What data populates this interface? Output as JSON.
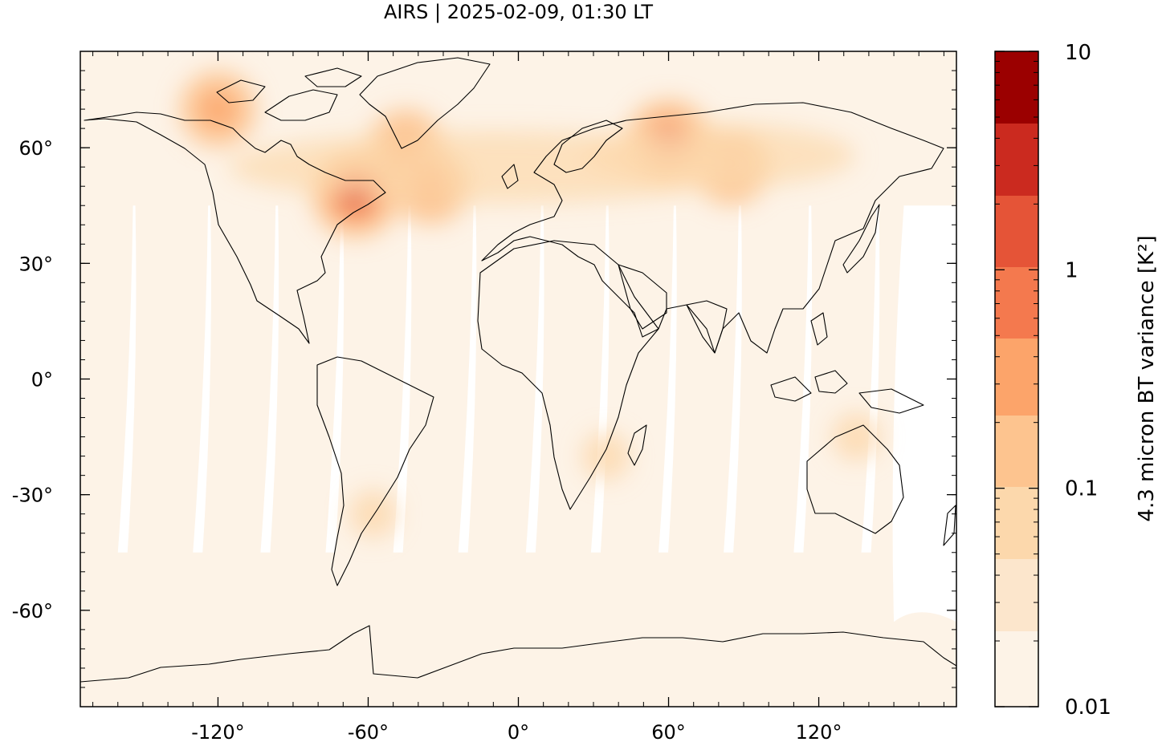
{
  "title": "AIRS | 2025-02-09, 01:30 LT",
  "map": {
    "projection": "equirectangular",
    "lon_range": [
      -175,
      175
    ],
    "lat_range": [
      -85,
      85
    ],
    "background_color": "#fdf3e7",
    "coastline_color": "#000000",
    "swath_gap_color": "#ffffff",
    "x_ticks": [
      {
        "value": -120,
        "label": "-120°"
      },
      {
        "value": -60,
        "label": "-60°"
      },
      {
        "value": 0,
        "label": "0°"
      },
      {
        "value": 60,
        "label": "60°"
      },
      {
        "value": 120,
        "label": "120°"
      }
    ],
    "y_ticks": [
      {
        "value": 60,
        "label": "60°"
      },
      {
        "value": 30,
        "label": "30°"
      },
      {
        "value": 0,
        "label": "0°"
      },
      {
        "value": -30,
        "label": "-30°"
      },
      {
        "value": -60,
        "label": "-60°"
      }
    ],
    "hotspots": [
      {
        "lon": 60,
        "lat": 61,
        "level": "high",
        "region": "Western Siberia"
      },
      {
        "lon": -65,
        "lat": 48,
        "level": "high",
        "region": "Eastern Canada"
      },
      {
        "lon": -45,
        "lat": 60,
        "level": "medium",
        "region": "South Greenland"
      },
      {
        "lon": -120,
        "lat": 70,
        "level": "medium",
        "region": "Arctic Canada"
      },
      {
        "lon": -35,
        "lat": 50,
        "level": "medium",
        "region": "North Atlantic"
      },
      {
        "lon": 85,
        "lat": 55,
        "level": "medium",
        "region": "Central Asia"
      },
      {
        "lon": -58,
        "lat": -35,
        "level": "low",
        "region": "South America"
      },
      {
        "lon": 135,
        "lat": -15,
        "level": "low",
        "region": "Northern Australia"
      },
      {
        "lon": 35,
        "lat": -20,
        "level": "low",
        "region": "Southern Africa"
      }
    ]
  },
  "colorbar": {
    "label": "4.3 micron BT variance [K²]",
    "scale": "log",
    "range": [
      0.01,
      10
    ],
    "tick_labels": [
      {
        "value": 10,
        "label": "10"
      },
      {
        "value": 1,
        "label": "1"
      },
      {
        "value": 0.1,
        "label": "0.1"
      },
      {
        "value": 0.01,
        "label": "0.01"
      }
    ],
    "colors_bottom_to_top": [
      "#fdf3e7",
      "#fce6cc",
      "#fcd8ac",
      "#fdc48f",
      "#fca46a",
      "#f4794e",
      "#e55437",
      "#cb2a1f",
      "#9b0000"
    ]
  }
}
